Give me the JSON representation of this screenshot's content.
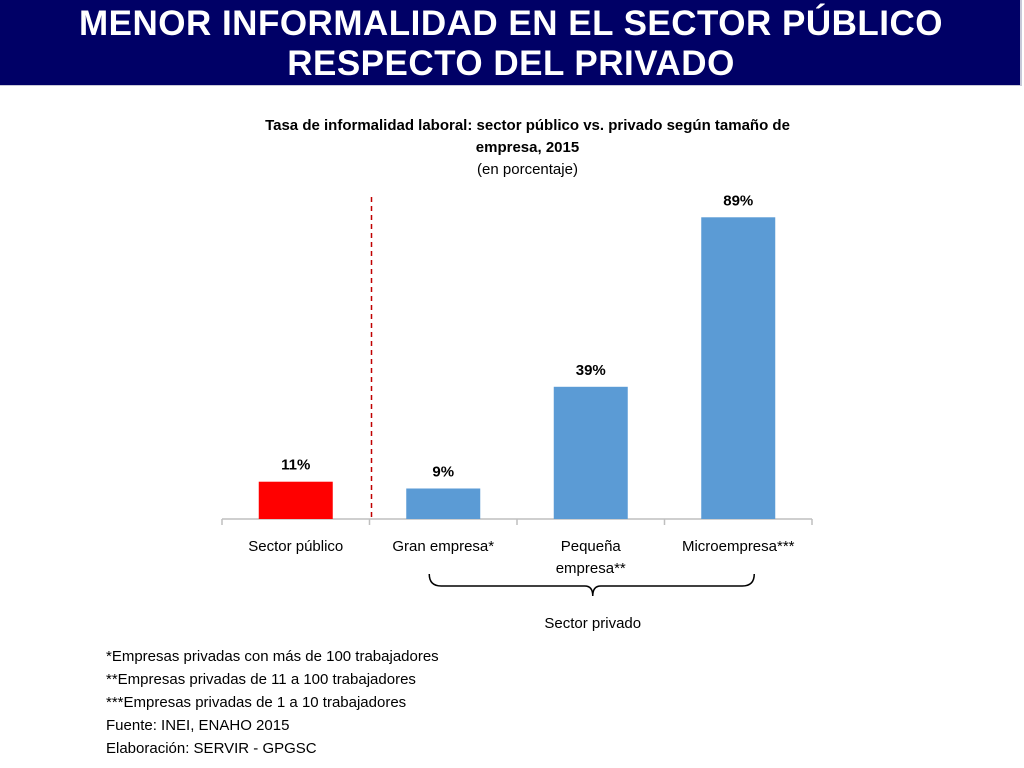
{
  "header": {
    "title_line_1": "MENOR INFORMALIDAD EN EL SECTOR PÚBLICO",
    "title_line_2": "RESPECTO DEL PRIVADO",
    "background_color": "#000066"
  },
  "chart_data": {
    "type": "bar",
    "title_line_1": "Tasa de informalidad laboral:  sector público vs. privado según tamaño de",
    "title_line_2": "empresa, 2015",
    "subtitle": "(en porcentaje)",
    "categories": [
      [
        "Sector público"
      ],
      [
        "Gran empresa*"
      ],
      [
        "Pequeña",
        "empresa**"
      ],
      [
        "Microempresa***"
      ]
    ],
    "values": [
      11,
      9,
      39,
      89
    ],
    "data_labels": [
      "11%",
      "9%",
      "39%",
      "89%"
    ],
    "bar_colors": [
      "#ff0000",
      "#5b9bd5",
      "#5b9bd5",
      "#5b9bd5"
    ],
    "ylim": [
      0,
      100
    ],
    "grid": false,
    "group_bracket_label": "Sector privado",
    "divider_color": "#c00000",
    "axis_color": "#bfbfbf"
  },
  "footnotes": [
    "*Empresas privadas con más de 100 trabajadores",
    "**Empresas privadas de 11 a 100 trabajadores",
    "***Empresas privadas de 1 a 10 trabajadores",
    "Fuente: INEI, ENAHO 2015",
    "Elaboración: SERVIR - GPGSC"
  ]
}
